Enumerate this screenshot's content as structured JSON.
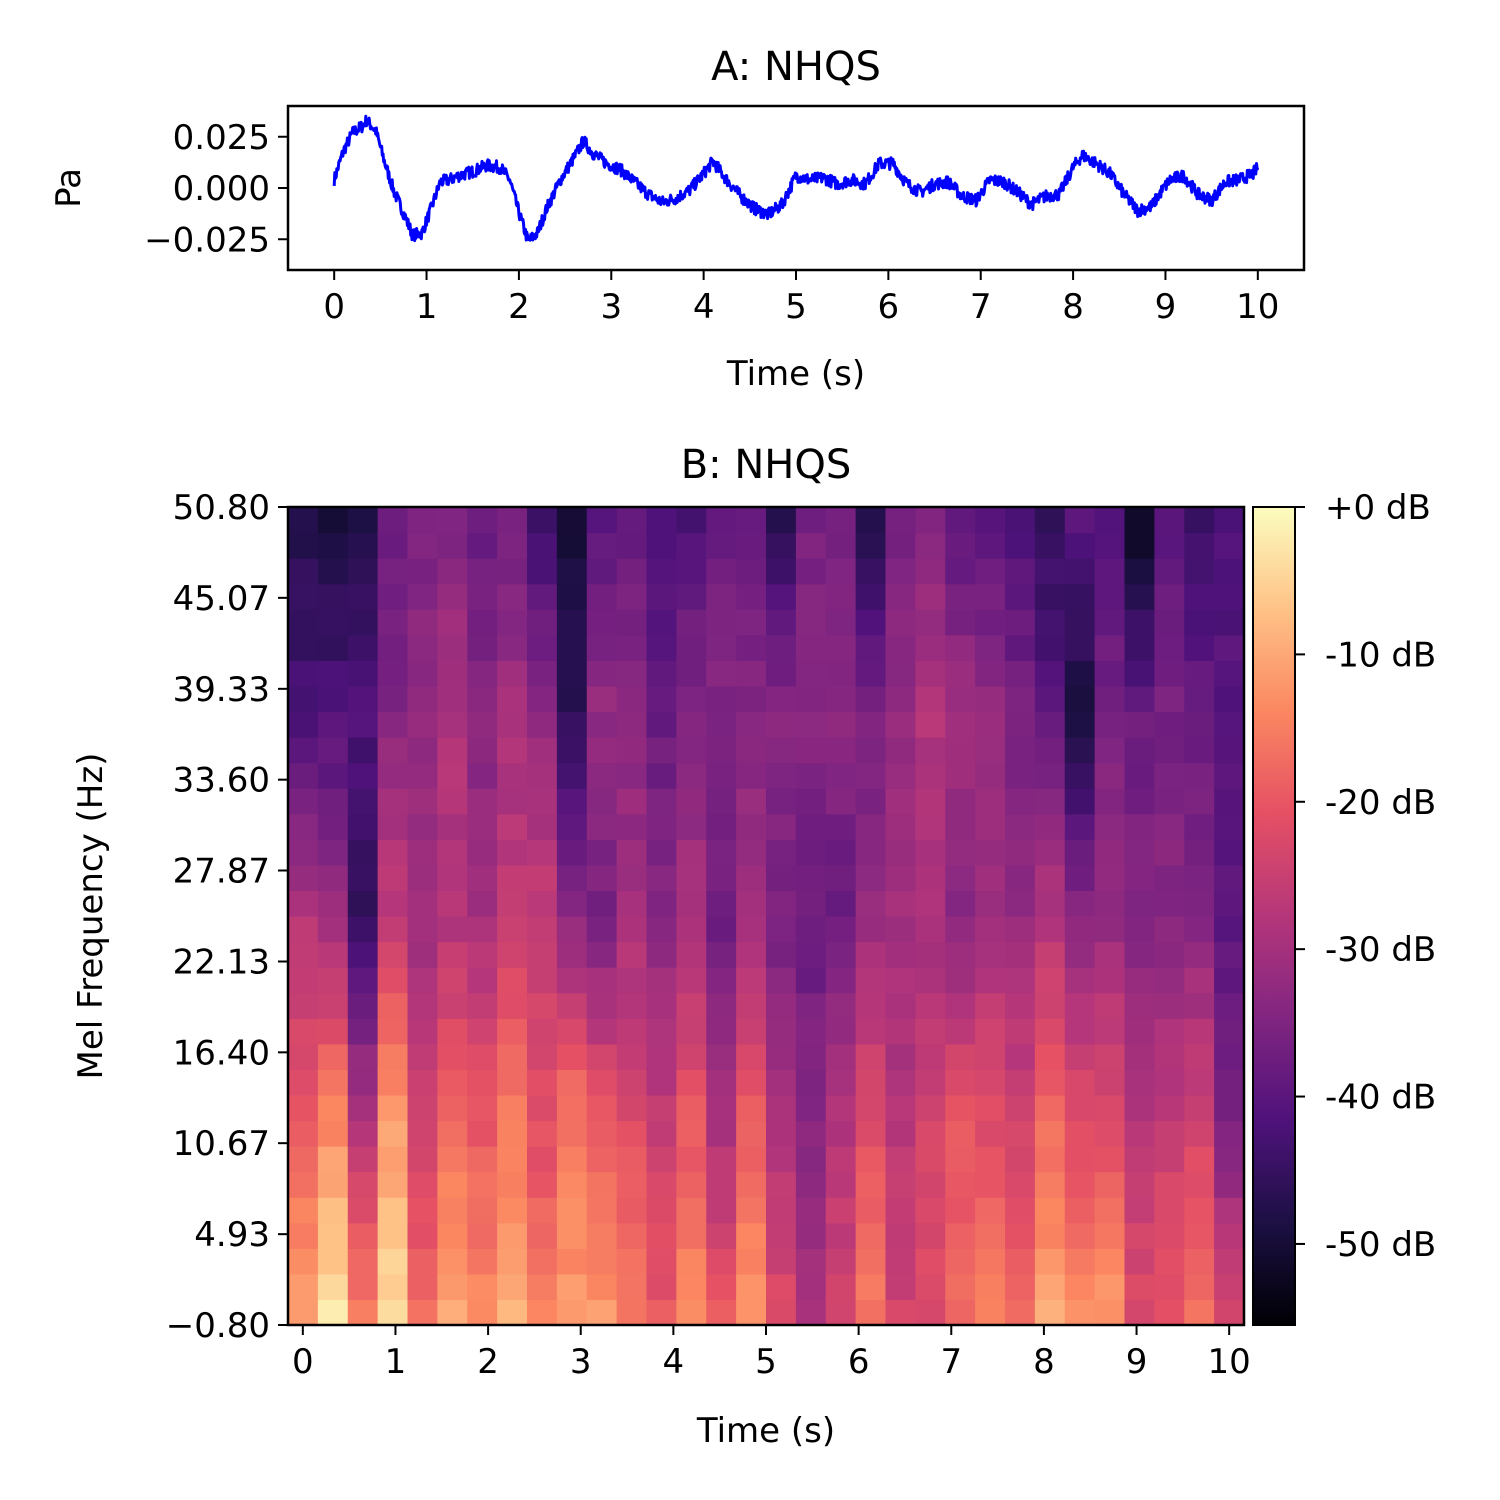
{
  "figure": {
    "panel_a_title": "A: NHQS",
    "panel_b_title": "B: NHQS"
  },
  "chart_data": [
    {
      "type": "line",
      "title": "A: NHQS",
      "xlabel": "Time (s)",
      "ylabel": "Pa",
      "xlim": [
        -0.5,
        10.5
      ],
      "ylim": [
        -0.04,
        0.04
      ],
      "xticks": [
        0,
        1,
        2,
        3,
        4,
        5,
        6,
        7,
        8,
        9,
        10
      ],
      "xtick_labels": [
        "0",
        "1",
        "2",
        "3",
        "4",
        "5",
        "6",
        "7",
        "8",
        "9",
        "10"
      ],
      "yticks": [
        0.025,
        0.0,
        -0.025
      ],
      "ytick_labels": [
        "0.025",
        "0.000",
        "−0.025"
      ],
      "line_color": "#0000ff",
      "series": [
        {
          "x": [
            0.0,
            0.1,
            0.2,
            0.3,
            0.35,
            0.45,
            0.55,
            0.65,
            0.75,
            0.85,
            0.95,
            1.05,
            1.15,
            1.25,
            1.35,
            1.5,
            1.65,
            1.8,
            1.9,
            2.0,
            2.1,
            2.2,
            2.3,
            2.45,
            2.6,
            2.7,
            2.8,
            2.95,
            3.1,
            3.25,
            3.4,
            3.55,
            3.7,
            3.85,
            4.0,
            4.1,
            4.25,
            4.4,
            4.55,
            4.7,
            4.85,
            5.0,
            5.15,
            5.3,
            5.45,
            5.6,
            5.75,
            5.9,
            6.05,
            6.2,
            6.35,
            6.5,
            6.65,
            6.8,
            6.95,
            7.1,
            7.25,
            7.4,
            7.55,
            7.7,
            7.85,
            8.0,
            8.1,
            8.25,
            8.4,
            8.55,
            8.7,
            8.85,
            8.95,
            9.05,
            9.2,
            9.35,
            9.5,
            9.65,
            9.8,
            9.95,
            10.0
          ],
          "y": [
            0.004,
            0.018,
            0.027,
            0.03,
            0.033,
            0.028,
            0.012,
            -0.002,
            -0.012,
            -0.023,
            -0.022,
            -0.01,
            0.003,
            0.004,
            0.006,
            0.008,
            0.011,
            0.01,
            0.004,
            -0.012,
            -0.026,
            -0.022,
            -0.01,
            0.004,
            0.015,
            0.023,
            0.017,
            0.012,
            0.009,
            0.003,
            -0.003,
            -0.007,
            -0.005,
            -0.001,
            0.007,
            0.013,
            0.004,
            -0.004,
            -0.01,
            -0.013,
            -0.008,
            0.006,
            0.004,
            0.005,
            0.002,
            0.004,
            0.002,
            0.012,
            0.012,
            0.002,
            -0.002,
            0.002,
            0.003,
            -0.004,
            -0.006,
            0.004,
            0.003,
            -0.002,
            -0.008,
            -0.004,
            -0.003,
            0.01,
            0.016,
            0.012,
            0.007,
            -0.003,
            -0.011,
            -0.009,
            -0.002,
            0.004,
            0.006,
            -0.003,
            -0.006,
            0.003,
            0.004,
            0.007,
            0.01
          ]
        }
      ]
    },
    {
      "type": "heatmap",
      "title": "B: NHQS",
      "xlabel": "Time (s)",
      "ylabel": "Mel Frequency (Hz)",
      "colormap": "magma",
      "xlim": [
        -0.16,
        10.16
      ],
      "ylim": [
        -0.8,
        50.8
      ],
      "xticks": [
        0,
        1,
        2,
        3,
        4,
        5,
        6,
        7,
        8,
        9,
        10
      ],
      "xtick_labels": [
        "0",
        "1",
        "2",
        "3",
        "4",
        "5",
        "6",
        "7",
        "8",
        "9",
        "10"
      ],
      "yticks": [
        -0.8,
        4.93,
        10.67,
        16.4,
        22.13,
        27.87,
        33.6,
        39.33,
        45.07,
        50.8
      ],
      "ytick_labels": [
        "−0.80",
        "4.93",
        "10.67",
        "16.40",
        "22.13",
        "27.87",
        "33.60",
        "39.33",
        "45.07",
        "50.80"
      ],
      "colorbar": {
        "range": [
          -55.5,
          0
        ],
        "ticks": [
          0,
          -10,
          -20,
          -30,
          -40,
          -50
        ],
        "tick_labels": [
          "+0 dB",
          "-10 dB",
          "-20 dB",
          "-30 dB",
          "-40 dB",
          "-50 dB"
        ]
      },
      "time_bins": 32,
      "freq_bins": 32,
      "column_profiles": [
        [
          -10,
          -20,
          -28,
          -42,
          -47
        ],
        [
          -3,
          -14,
          -32,
          -41,
          -50
        ],
        [
          -16,
          -28,
          -45,
          -42,
          -48
        ],
        [
          -4,
          -12,
          -26,
          -34,
          -38
        ],
        [
          -18,
          -24,
          -31,
          -32,
          -36
        ],
        [
          -10,
          -18,
          -28,
          -29,
          -35
        ],
        [
          -14,
          -20,
          -30,
          -34,
          -38
        ],
        [
          -9,
          -16,
          -26,
          -30,
          -36
        ],
        [
          -14,
          -22,
          -26,
          -32,
          -44
        ],
        [
          -12,
          -16,
          -34,
          -46,
          -50
        ],
        [
          -12,
          -20,
          -36,
          -32,
          -40
        ],
        [
          -16,
          -22,
          -30,
          -34,
          -38
        ],
        [
          -20,
          -26,
          -34,
          -38,
          -42
        ],
        [
          -14,
          -20,
          -30,
          -34,
          -42
        ],
        [
          -20,
          -30,
          -38,
          -34,
          -38
        ],
        [
          -12,
          -20,
          -30,
          -34,
          -38
        ],
        [
          -22,
          -30,
          -36,
          -34,
          -46
        ],
        [
          -30,
          -34,
          -38,
          -34,
          -36
        ],
        [
          -24,
          -28,
          -38,
          -34,
          -36
        ],
        [
          -16,
          -22,
          -32,
          -36,
          -48
        ],
        [
          -24,
          -28,
          -30,
          -32,
          -36
        ],
        [
          -22,
          -24,
          -30,
          -28,
          -34
        ],
        [
          -18,
          -20,
          -34,
          -30,
          -40
        ],
        [
          -14,
          -22,
          -30,
          -32,
          -40
        ],
        [
          -18,
          -24,
          -32,
          -36,
          -42
        ],
        [
          -10,
          -18,
          -28,
          -40,
          -46
        ],
        [
          -14,
          -22,
          -34,
          -50,
          -40
        ],
        [
          -12,
          -22,
          -32,
          -36,
          -40
        ],
        [
          -22,
          -28,
          -34,
          -38,
          -52
        ],
        [
          -20,
          -26,
          -34,
          -36,
          -40
        ],
        [
          -16,
          -24,
          -34,
          -38,
          -44
        ],
        [
          -24,
          -36,
          -40,
          -40,
          -42
        ]
      ]
    }
  ]
}
